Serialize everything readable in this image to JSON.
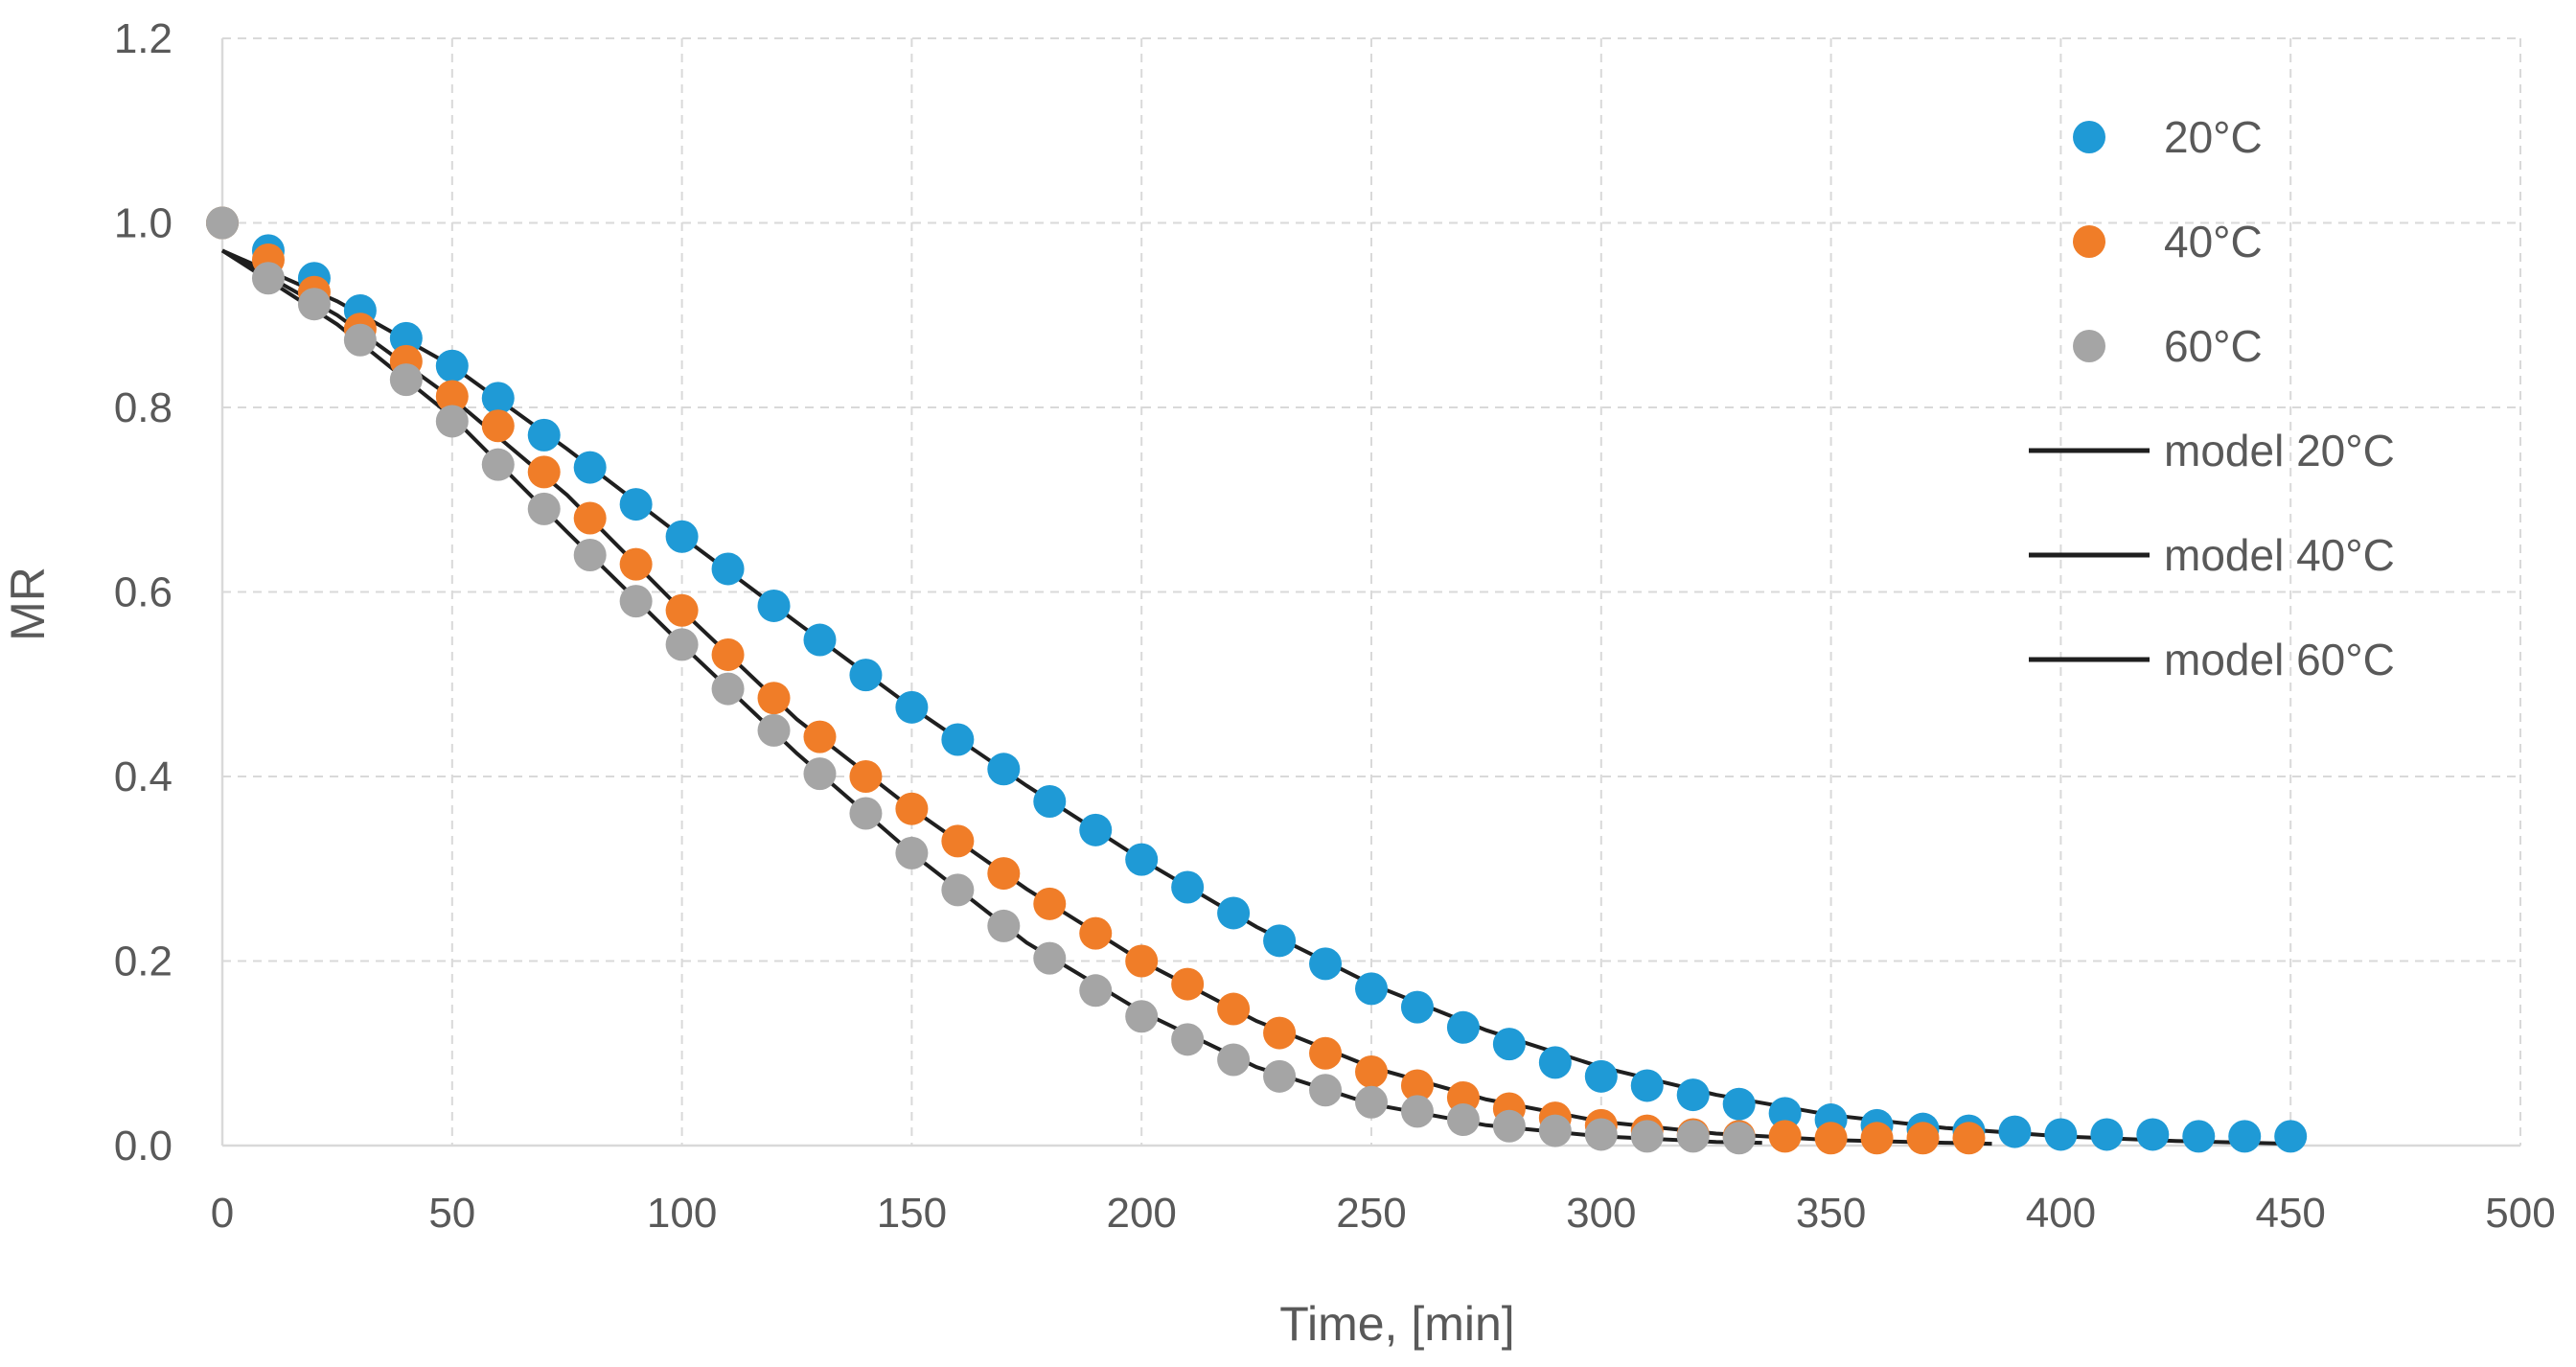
{
  "chart_data": {
    "type": "scatter",
    "title": "",
    "xlabel": "Time, [min]",
    "ylabel": "MR",
    "xlim": [
      0,
      500
    ],
    "ylim": [
      0,
      1.2
    ],
    "x_ticks": [
      0,
      50,
      100,
      150,
      200,
      250,
      300,
      350,
      400,
      450,
      500
    ],
    "y_ticks": [
      0.0,
      0.2,
      0.4,
      0.6,
      0.8,
      1.0,
      1.2
    ],
    "x_tick_labels": [
      "0",
      "50",
      "100",
      "150",
      "200",
      "250",
      "300",
      "350",
      "400",
      "450",
      "500"
    ],
    "y_tick_labels": [
      "0.0",
      "0.2",
      "0.4",
      "0.6",
      "0.8",
      "1.0",
      "1.2"
    ],
    "grid": true,
    "legend_position": "top-right",
    "series": [
      {
        "name": "20°C",
        "kind": "points",
        "color": "#1f9ad6",
        "x": [
          0,
          10,
          20,
          30,
          40,
          50,
          60,
          70,
          80,
          90,
          100,
          110,
          120,
          130,
          140,
          150,
          160,
          170,
          180,
          190,
          200,
          210,
          220,
          230,
          240,
          250,
          260,
          270,
          280,
          290,
          300,
          310,
          320,
          330,
          340,
          350,
          360,
          370,
          380,
          390,
          400,
          410,
          420,
          430,
          440,
          450
        ],
        "y": [
          1.0,
          0.97,
          0.94,
          0.905,
          0.875,
          0.845,
          0.81,
          0.77,
          0.735,
          0.695,
          0.66,
          0.625,
          0.585,
          0.548,
          0.51,
          0.475,
          0.44,
          0.408,
          0.373,
          0.342,
          0.31,
          0.28,
          0.252,
          0.222,
          0.197,
          0.17,
          0.15,
          0.128,
          0.11,
          0.09,
          0.075,
          0.065,
          0.055,
          0.045,
          0.035,
          0.028,
          0.022,
          0.018,
          0.016,
          0.015,
          0.012,
          0.012,
          0.012,
          0.01,
          0.01,
          0.01
        ]
      },
      {
        "name": "40°C",
        "kind": "points",
        "color": "#f07d28",
        "x": [
          0,
          10,
          20,
          30,
          40,
          50,
          60,
          70,
          80,
          90,
          100,
          110,
          120,
          130,
          140,
          150,
          160,
          170,
          180,
          190,
          200,
          210,
          220,
          230,
          240,
          250,
          260,
          270,
          280,
          290,
          300,
          310,
          320,
          330,
          340,
          350,
          360,
          370,
          380
        ],
        "y": [
          1.0,
          0.96,
          0.925,
          0.885,
          0.85,
          0.812,
          0.78,
          0.73,
          0.68,
          0.63,
          0.58,
          0.532,
          0.485,
          0.443,
          0.4,
          0.365,
          0.33,
          0.295,
          0.262,
          0.23,
          0.2,
          0.175,
          0.148,
          0.122,
          0.1,
          0.08,
          0.065,
          0.052,
          0.04,
          0.03,
          0.022,
          0.016,
          0.012,
          0.01,
          0.01,
          0.008,
          0.008,
          0.008,
          0.008
        ]
      },
      {
        "name": "60°C",
        "kind": "points",
        "color": "#a5a5a5",
        "x": [
          0,
          10,
          20,
          30,
          40,
          50,
          60,
          70,
          80,
          90,
          100,
          110,
          120,
          130,
          140,
          150,
          160,
          170,
          180,
          190,
          200,
          210,
          220,
          230,
          240,
          250,
          260,
          270,
          280,
          290,
          300,
          310,
          320,
          330
        ],
        "y": [
          1.0,
          0.94,
          0.912,
          0.873,
          0.83,
          0.785,
          0.738,
          0.69,
          0.64,
          0.59,
          0.543,
          0.495,
          0.45,
          0.403,
          0.36,
          0.317,
          0.277,
          0.238,
          0.203,
          0.168,
          0.14,
          0.115,
          0.093,
          0.075,
          0.06,
          0.047,
          0.037,
          0.028,
          0.021,
          0.016,
          0.012,
          0.01,
          0.01,
          0.008
        ]
      },
      {
        "name": "model 20°C",
        "kind": "line",
        "color": "#1f1f1f",
        "x": [
          0,
          25,
          50,
          75,
          100,
          125,
          150,
          175,
          200,
          225,
          250,
          275,
          300,
          325,
          350,
          375,
          400,
          425,
          450
        ],
        "y": [
          0.97,
          0.915,
          0.845,
          0.755,
          0.66,
          0.567,
          0.475,
          0.39,
          0.31,
          0.237,
          0.175,
          0.125,
          0.085,
          0.055,
          0.033,
          0.019,
          0.01,
          0.005,
          0.002
        ]
      },
      {
        "name": "model 40°C",
        "kind": "line",
        "color": "#1f1f1f",
        "x": [
          0,
          25,
          50,
          75,
          100,
          125,
          150,
          175,
          200,
          225,
          250,
          275,
          300,
          325,
          350,
          375,
          385
        ],
        "y": [
          0.97,
          0.9,
          0.81,
          0.705,
          0.58,
          0.462,
          0.365,
          0.278,
          0.2,
          0.135,
          0.085,
          0.05,
          0.026,
          0.013,
          0.006,
          0.003,
          0.002
        ]
      },
      {
        "name": "model 60°C",
        "kind": "line",
        "color": "#1f1f1f",
        "x": [
          0,
          25,
          50,
          75,
          100,
          125,
          150,
          175,
          200,
          225,
          250,
          275,
          300,
          325,
          335
        ],
        "y": [
          0.97,
          0.89,
          0.79,
          0.665,
          0.543,
          0.425,
          0.317,
          0.22,
          0.145,
          0.085,
          0.045,
          0.022,
          0.01,
          0.004,
          0.003
        ]
      }
    ]
  }
}
